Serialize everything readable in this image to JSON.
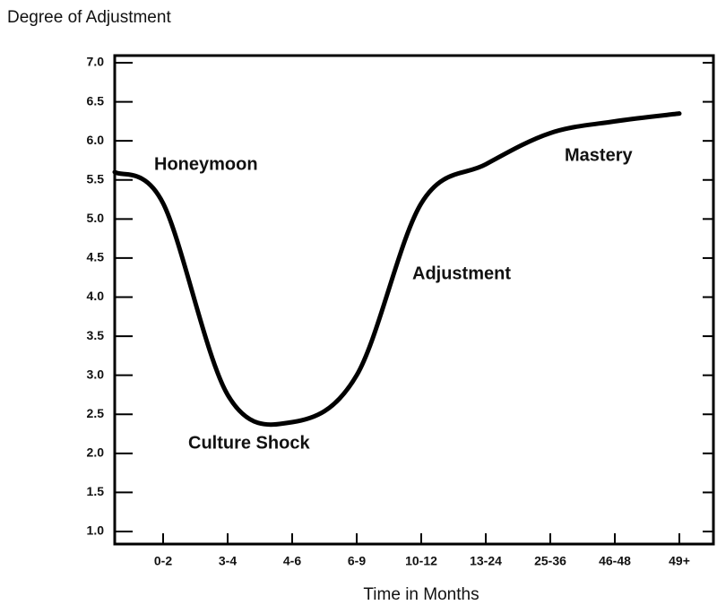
{
  "chart_data": {
    "type": "line",
    "ylabel": "Degree of Adjustment",
    "xlabel": "Time in Months",
    "categories": [
      null,
      "0-2",
      "3-4",
      "4-6",
      "6-9",
      "10-12",
      "13-24",
      "25-36",
      "46-48",
      "49+"
    ],
    "values": [
      5.6,
      5.2,
      2.75,
      2.4,
      3.0,
      5.2,
      5.7,
      6.1,
      6.25,
      6.35
    ],
    "color": "#000000",
    "ylim": [
      1,
      7
    ],
    "yticks": [
      {
        "value": 1,
        "label": "1.0"
      },
      {
        "value": 1.5,
        "label": "1.5"
      },
      {
        "value": 2,
        "label": "2.0"
      },
      {
        "value": 2.5,
        "label": "2.5"
      },
      {
        "value": 3,
        "label": "3.0"
      },
      {
        "value": 3.5,
        "label": "3.5"
      },
      {
        "value": 4,
        "label": "4.0"
      },
      {
        "value": 4.5,
        "label": "4.5"
      },
      {
        "value": 5,
        "label": "5.0"
      },
      {
        "value": 5.5,
        "label": "5.5"
      },
      {
        "value": 6,
        "label": "6.0"
      },
      {
        "value": 6.5,
        "label": "6.5"
      },
      {
        "value": 7,
        "label": "7.0"
      }
    ],
    "annotations": [
      "Honeymoon",
      "Culture Shock",
      "Adjustment",
      "Mastery"
    ]
  }
}
